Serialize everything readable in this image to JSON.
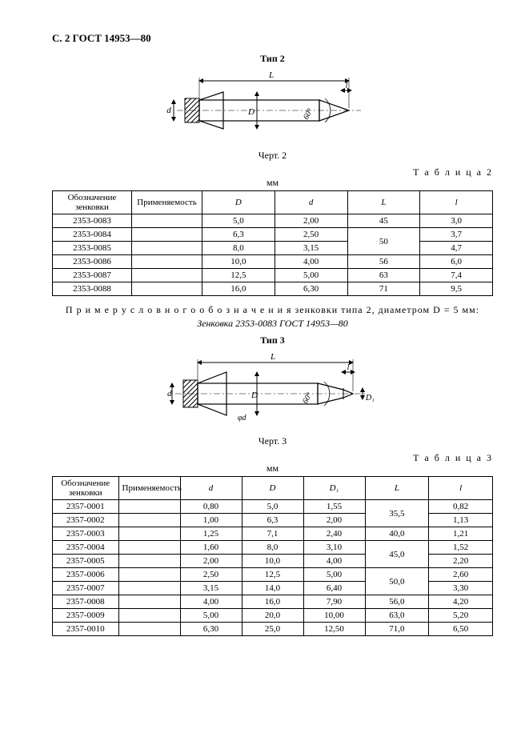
{
  "header": "С. 2 ГОСТ 14953—80",
  "fig2_title": "Тип 2",
  "fig2_caption": "Черт. 2",
  "fig3_title": "Тип 3",
  "fig3_caption": "Черт. 3",
  "table2_label": "Т а б л и ц а  2",
  "table3_label": "Т а б л и ц а  3",
  "unit": "мм",
  "example_line1": "П р и м е р   у с л о в н о г о   о б о з н а ч е н и я  зенковки типа 2, диаметром D = 5 мм:",
  "example_line2": "Зенковка 2353-0083 ГОСТ 14953—80",
  "table2": {
    "columns": [
      "Обозначение зенковки",
      "Применяемость",
      "D",
      "d",
      "L",
      "l"
    ],
    "col_widths": [
      "18%",
      "16%",
      "16.5%",
      "16.5%",
      "16.5%",
      "16.5%"
    ],
    "rows": [
      {
        "c0": "2353-0083",
        "c1": "",
        "c2": "5,0",
        "c3": "2,00",
        "c4": "45",
        "c5": "3,0",
        "L_rowspan": 1
      },
      {
        "c0": "2353-0084",
        "c1": "",
        "c2": "6,3",
        "c3": "2,50",
        "c4": "50",
        "c5": "3,7",
        "L_rowspan": 2
      },
      {
        "c0": "2353-0085",
        "c1": "",
        "c2": "8,0",
        "c3": "3,15",
        "c4": "",
        "c5": "4,7"
      },
      {
        "c0": "2353-0086",
        "c1": "",
        "c2": "10,0",
        "c3": "4,00",
        "c4": "56",
        "c5": "6,0",
        "L_rowspan": 1
      },
      {
        "c0": "2353-0087",
        "c1": "",
        "c2": "12,5",
        "c3": "5,00",
        "c4": "63",
        "c5": "7,4",
        "L_rowspan": 1
      },
      {
        "c0": "2353-0088",
        "c1": "",
        "c2": "16,0",
        "c3": "6,30",
        "c4": "71",
        "c5": "9,5",
        "L_rowspan": 1
      }
    ]
  },
  "table3": {
    "columns": [
      "Обозначение зенковки",
      "Применяемость",
      "d",
      "D",
      "D₁",
      "L",
      "l"
    ],
    "col_widths": [
      "15%",
      "14%",
      "14%",
      "14%",
      "14%",
      "14.5%",
      "14.5%"
    ],
    "rows": [
      {
        "c0": "2357-0001",
        "c1": "",
        "c2": "0,80",
        "c3": "5,0",
        "c4": "1,55",
        "c5": "35,5",
        "c6": "0,82",
        "L_rowspan": 2
      },
      {
        "c0": "2357-0002",
        "c1": "",
        "c2": "1,00",
        "c3": "6,3",
        "c4": "2,00",
        "c5": "",
        "c6": "1,13"
      },
      {
        "c0": "2357-0003",
        "c1": "",
        "c2": "1,25",
        "c3": "7,1",
        "c4": "2,40",
        "c5": "40,0",
        "c6": "1,21",
        "L_rowspan": 1
      },
      {
        "c0": "2357-0004",
        "c1": "",
        "c2": "1,60",
        "c3": "8,0",
        "c4": "3,10",
        "c5": "45,0",
        "c6": "1,52",
        "L_rowspan": 2
      },
      {
        "c0": "2357-0005",
        "c1": "",
        "c2": "2,00",
        "c3": "10,0",
        "c4": "4,00",
        "c5": "",
        "c6": "2,20"
      },
      {
        "c0": "2357-0006",
        "c1": "",
        "c2": "2,50",
        "c3": "12,5",
        "c4": "5,00",
        "c5": "50,0",
        "c6": "2,60",
        "L_rowspan": 2
      },
      {
        "c0": "2357-0007",
        "c1": "",
        "c2": "3,15",
        "c3": "14,0",
        "c4": "6,40",
        "c5": "",
        "c6": "3,30"
      },
      {
        "c0": "2357-0008",
        "c1": "",
        "c2": "4,00",
        "c3": "16,0",
        "c4": "7,90",
        "c5": "56,0",
        "c6": "4,20",
        "L_rowspan": 1
      },
      {
        "c0": "2357-0009",
        "c1": "",
        "c2": "5,00",
        "c3": "20,0",
        "c4": "10,00",
        "c5": "63,0",
        "c6": "5,20",
        "L_rowspan": 1
      },
      {
        "c0": "2357-0010",
        "c1": "",
        "c2": "6,30",
        "c3": "25,0",
        "c4": "12,50",
        "c5": "71,0",
        "c6": "6,50",
        "L_rowspan": 1
      }
    ]
  },
  "diagram_style": {
    "stroke": "#000000",
    "stroke_width": 1.2,
    "hatch_color": "#000000",
    "font_size": 10
  }
}
